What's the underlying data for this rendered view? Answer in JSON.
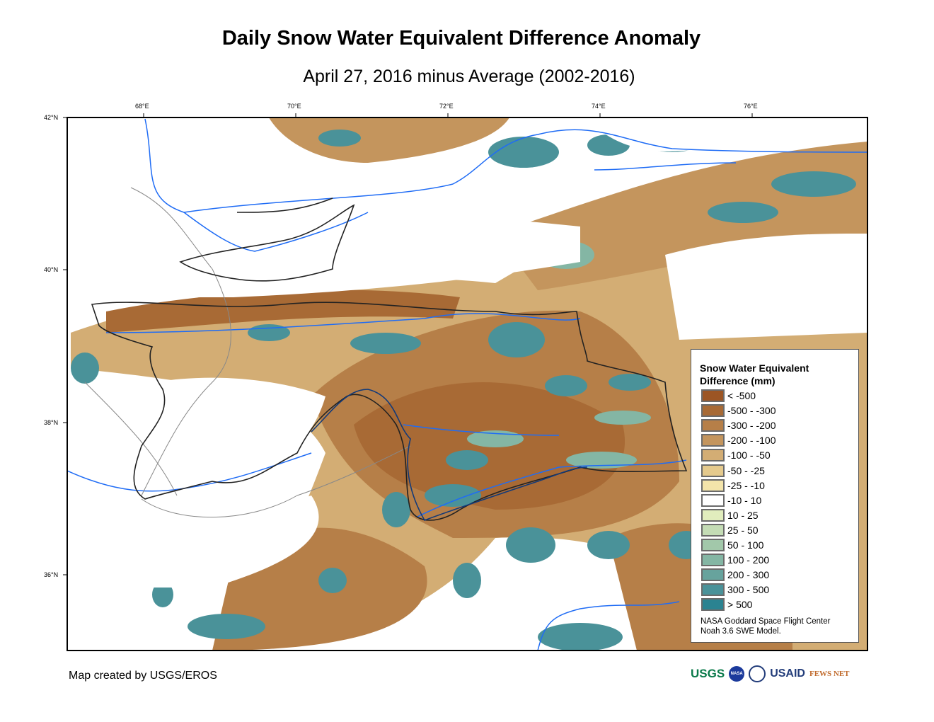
{
  "title": "Daily Snow Water Equivalent Difference Anomaly",
  "subtitle": "April 27, 2016 minus Average (2002-2016)",
  "longitude_ticks": [
    "68°E",
    "70°E",
    "72°E",
    "74°E",
    "76°E"
  ],
  "latitude_ticks": [
    "42°N",
    "40°N",
    "38°N",
    "36°N"
  ],
  "legend": {
    "title_line1": "Snow Water Equivalent",
    "title_line2": "Difference (mm)",
    "classes": [
      {
        "label": "< -500",
        "color": "#9c5524"
      },
      {
        "label": "-500 - -300",
        "color": "#a86a35"
      },
      {
        "label": "-300 - -200",
        "color": "#b67f48"
      },
      {
        "label": "-200 - -100",
        "color": "#c4955d"
      },
      {
        "label": "-100 - -50",
        "color": "#d3ad74"
      },
      {
        "label": "-50 - -25",
        "color": "#e5ca8d"
      },
      {
        "label": "-25 - -10",
        "color": "#f3e4aa"
      },
      {
        "label": "-10 - 10",
        "color": "#ffffff"
      },
      {
        "label": "10 - 25",
        "color": "#e1edbd"
      },
      {
        "label": "25 - 50",
        "color": "#c4dcb5"
      },
      {
        "label": "50 - 100",
        "color": "#a2c8aa"
      },
      {
        "label": "100 - 200",
        "color": "#84b6a4"
      },
      {
        "label": "200 - 300",
        "color": "#67a39d"
      },
      {
        "label": "300 - 500",
        "color": "#4a9299"
      },
      {
        "label": "> 500",
        "color": "#2b8391"
      }
    ],
    "credit_line1": "NASA Goddard Space Flight Center",
    "credit_line2": "Noah 3.6 SWE Model."
  },
  "footer": {
    "made_by": "Map created by USGS/EROS",
    "logos": [
      "USGS",
      "NASA",
      "USAID",
      "FEWS NET"
    ]
  }
}
